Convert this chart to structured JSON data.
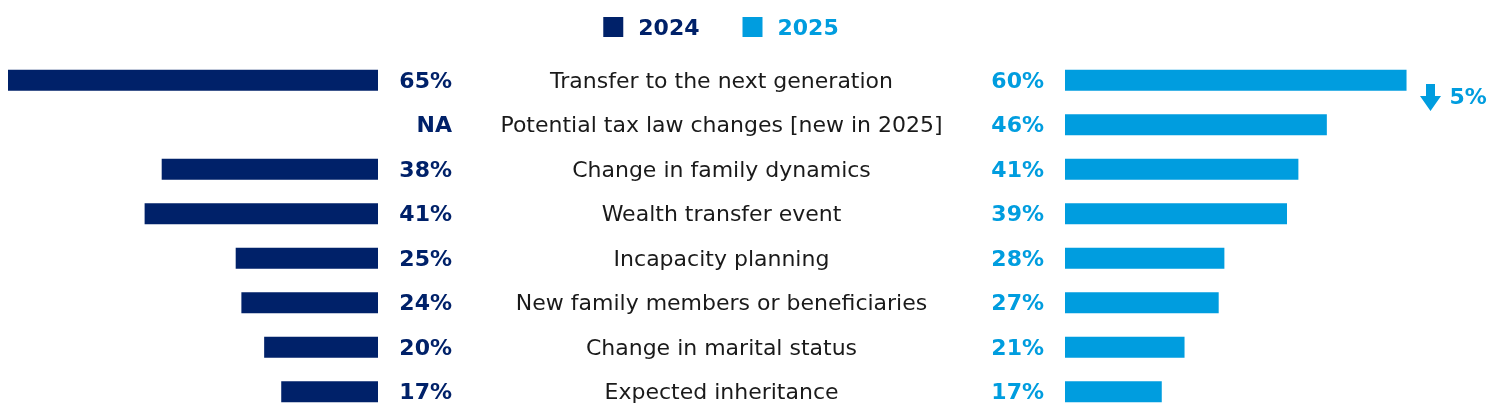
{
  "chart_data": [
    {
      "type": "bar",
      "orientation": "horizontal",
      "categories": [
        "Transfer to the next generation",
        "Potential tax law changes [new in 2025]",
        "Change in family dynamics",
        "Wealth transfer event",
        "Incapacity planning",
        "New family members or beneficiaries",
        "Change in marital status",
        "Expected inheritance"
      ],
      "xlim": [
        65,
        0
      ],
      "series": [
        {
          "name": "2024",
          "color": "#002169",
          "values": [
            65,
            null,
            38,
            41,
            25,
            24,
            20,
            17
          ],
          "value_labels": [
            "65%",
            "NA",
            "38%",
            "41%",
            "25%",
            "24%",
            "20%",
            "17%"
          ]
        }
      ],
      "legend": "top",
      "tick_labels": "y"
    },
    {
      "type": "bar",
      "orientation": "horizontal",
      "categories": [
        "Transfer to the next generation",
        "Potential tax law changes [new in 2025]",
        "Change in family dynamics",
        "Wealth transfer event",
        "Incapacity planning",
        "New family members or beneficiaries",
        "Change in marital status",
        "Expected inheritance"
      ],
      "series": [
        {
          "name": "2025",
          "color": "#009ddf",
          "values": [
            60,
            46,
            41,
            39,
            28,
            27,
            21,
            17
          ],
          "value_labels": [
            "60%",
            "46%",
            "41%",
            "39%",
            "28%",
            "27%",
            "21%",
            "17%"
          ]
        }
      ],
      "legend": "top",
      "tick_labels": false,
      "annotations": [
        {
          "text": "5%",
          "x": 60,
          "y": "Transfer to the next generation"
        }
      ]
    }
  ]
}
